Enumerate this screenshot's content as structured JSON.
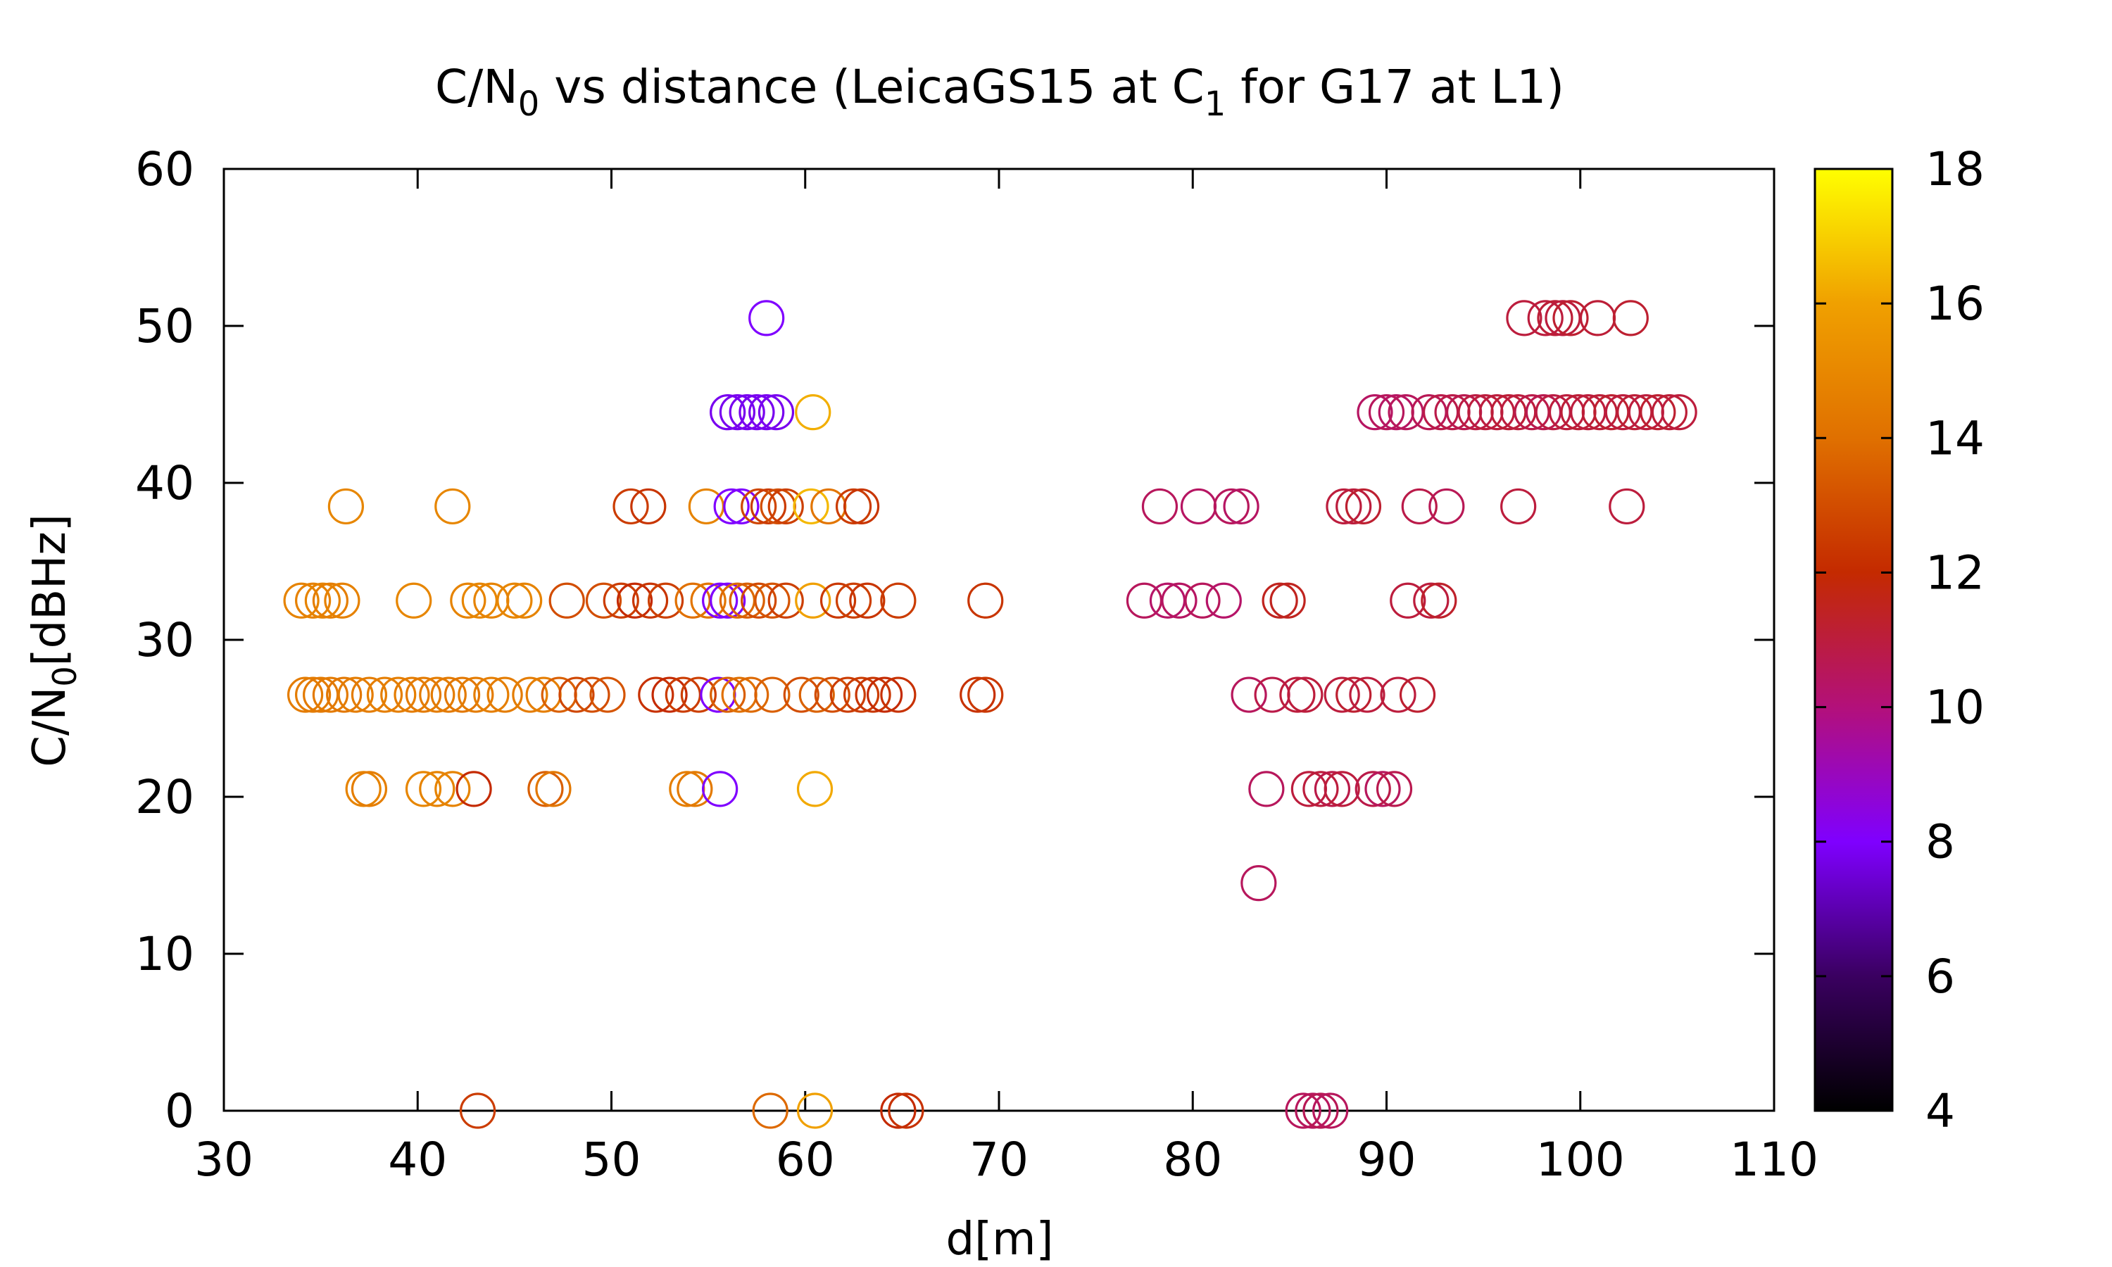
{
  "chart_data": {
    "type": "scatter",
    "title": {
      "base": "C/N",
      "sub": "0",
      "after": " vs distance (LeicaGS15 at C",
      "sub2": "1",
      "tail": " for G17 at L1)"
    },
    "xlabel": "d[m]",
    "ylabel": {
      "base": "C/N",
      "sub": "0",
      "after": "[dBHz]"
    },
    "xlim": [
      30,
      110
    ],
    "ylim": [
      0,
      60
    ],
    "x_ticks": [
      30,
      40,
      50,
      60,
      70,
      80,
      90,
      100,
      110
    ],
    "y_ticks": [
      0,
      10,
      20,
      30,
      40,
      50,
      60
    ],
    "marker": "open-circle",
    "grid": false,
    "colorbar": {
      "range": [
        4,
        18
      ],
      "ticks": [
        4,
        6,
        8,
        10,
        12,
        14,
        16,
        18
      ],
      "palette": [
        "#000000",
        "#3a0060",
        "#7f00ff",
        "#b3107a",
        "#c42a00",
        "#e07000",
        "#f0a000",
        "#ffff00"
      ]
    },
    "points": [
      [
        34.2,
        26.5,
        14.5
      ],
      [
        34.6,
        26.5,
        14.5
      ],
      [
        35.0,
        26.5,
        14.4
      ],
      [
        35.5,
        26.5,
        14.4
      ],
      [
        36.2,
        26.5,
        14.3
      ],
      [
        36.8,
        26.5,
        14.5
      ],
      [
        37.5,
        26.5,
        14.5
      ],
      [
        38.3,
        26.5,
        14.6
      ],
      [
        39.0,
        26.5,
        14.6
      ],
      [
        39.7,
        26.5,
        14.5
      ],
      [
        40.3,
        26.5,
        14.4
      ],
      [
        41.0,
        26.5,
        14.5
      ],
      [
        41.6,
        26.5,
        14.4
      ],
      [
        42.3,
        26.5,
        14.3
      ],
      [
        43.0,
        26.5,
        14.5
      ],
      [
        43.8,
        26.5,
        14.6
      ],
      [
        44.5,
        26.5,
        14.5
      ],
      [
        45.8,
        26.5,
        14.5
      ],
      [
        46.5,
        26.5,
        14.6
      ],
      [
        47.3,
        26.5,
        13.5
      ],
      [
        48.2,
        26.5,
        12.8
      ],
      [
        49.0,
        26.5,
        13.0
      ],
      [
        49.8,
        26.5,
        13.2
      ],
      [
        52.3,
        26.5,
        12.2
      ],
      [
        53.0,
        26.5,
        12.0
      ],
      [
        53.7,
        26.5,
        12.5
      ],
      [
        54.5,
        26.5,
        12.6
      ],
      [
        55.5,
        26.5,
        8.0
      ],
      [
        56.0,
        26.5,
        13.5
      ],
      [
        56.6,
        26.5,
        14.0
      ],
      [
        57.2,
        26.5,
        13.8
      ],
      [
        58.3,
        26.5,
        13.5
      ],
      [
        59.8,
        26.5,
        13.0
      ],
      [
        60.6,
        26.5,
        13.6
      ],
      [
        61.4,
        26.5,
        13.0
      ],
      [
        62.2,
        26.5,
        12.5
      ],
      [
        62.9,
        26.5,
        12.5
      ],
      [
        63.5,
        26.5,
        12.3
      ],
      [
        64.1,
        26.5,
        12.0
      ],
      [
        64.8,
        26.5,
        12.2
      ],
      [
        68.9,
        26.5,
        12.2
      ],
      [
        69.3,
        26.5,
        12.4
      ],
      [
        34.0,
        32.5,
        14.8
      ],
      [
        34.6,
        32.5,
        14.7
      ],
      [
        35.1,
        32.5,
        14.8
      ],
      [
        35.5,
        32.5,
        14.6
      ],
      [
        36.1,
        32.5,
        14.7
      ],
      [
        39.8,
        32.5,
        14.9
      ],
      [
        42.6,
        32.5,
        14.8
      ],
      [
        43.2,
        32.5,
        14.9
      ],
      [
        43.8,
        32.5,
        14.8
      ],
      [
        45.0,
        32.5,
        14.9
      ],
      [
        45.5,
        32.5,
        14.8
      ],
      [
        47.7,
        32.5,
        13.0
      ],
      [
        49.6,
        32.5,
        13.0
      ],
      [
        50.5,
        32.5,
        12.5
      ],
      [
        51.2,
        32.5,
        12.0
      ],
      [
        52.0,
        32.5,
        12.3
      ],
      [
        52.8,
        32.5,
        12.6
      ],
      [
        54.2,
        32.5,
        14.0
      ],
      [
        55.0,
        32.5,
        14.2
      ],
      [
        55.6,
        32.5,
        8.0
      ],
      [
        56.0,
        32.5,
        8.0
      ],
      [
        56.5,
        32.5,
        13.8
      ],
      [
        57.0,
        32.5,
        13.5
      ],
      [
        57.6,
        32.5,
        12.9
      ],
      [
        58.3,
        32.5,
        13.2
      ],
      [
        59.0,
        32.5,
        12.6
      ],
      [
        60.4,
        32.5,
        16.0
      ],
      [
        61.7,
        32.5,
        12.4
      ],
      [
        62.5,
        32.5,
        12.6
      ],
      [
        63.2,
        32.5,
        12.3
      ],
      [
        64.8,
        32.5,
        12.5
      ],
      [
        69.3,
        32.5,
        12.3
      ],
      [
        36.3,
        38.5,
        14.9
      ],
      [
        41.8,
        38.5,
        14.9
      ],
      [
        51.0,
        38.5,
        12.5
      ],
      [
        51.9,
        38.5,
        12.3
      ],
      [
        54.9,
        38.5,
        14.8
      ],
      [
        56.2,
        38.5,
        8.0
      ],
      [
        56.7,
        38.5,
        8.0
      ],
      [
        57.6,
        38.5,
        12.8
      ],
      [
        58.1,
        38.5,
        12.5
      ],
      [
        58.6,
        38.5,
        13.0
      ],
      [
        59.0,
        38.5,
        12.6
      ],
      [
        60.3,
        38.5,
        16.5
      ],
      [
        61.2,
        38.5,
        14.2
      ],
      [
        62.5,
        38.5,
        12.5
      ],
      [
        62.9,
        38.5,
        12.3
      ],
      [
        37.2,
        20.5,
        14.8
      ],
      [
        37.5,
        20.5,
        14.6
      ],
      [
        40.3,
        20.5,
        14.9
      ],
      [
        41.0,
        20.5,
        14.8
      ],
      [
        41.8,
        20.5,
        14.8
      ],
      [
        42.9,
        20.5,
        12.0
      ],
      [
        46.6,
        20.5,
        13.5
      ],
      [
        47.0,
        20.5,
        14.3
      ],
      [
        53.9,
        20.5,
        14.6
      ],
      [
        54.3,
        20.5,
        14.4
      ],
      [
        55.6,
        20.5,
        8.0
      ],
      [
        60.5,
        20.5,
        16.2
      ],
      [
        56.0,
        44.5,
        7.8
      ],
      [
        56.5,
        44.5,
        7.8
      ],
      [
        57.0,
        44.5,
        7.8
      ],
      [
        57.5,
        44.5,
        7.8
      ],
      [
        58.0,
        44.5,
        7.8
      ],
      [
        58.5,
        44.5,
        7.8
      ],
      [
        60.4,
        44.5,
        16.3
      ],
      [
        58.0,
        50.5,
        8.0
      ],
      [
        43.1,
        0,
        12.5
      ],
      [
        58.2,
        0,
        13.8
      ],
      [
        60.5,
        0,
        16.0
      ],
      [
        64.8,
        0,
        12.0
      ],
      [
        65.2,
        0,
        12.2
      ],
      [
        77.5,
        32.5,
        10.5
      ],
      [
        78.7,
        32.5,
        10.3
      ],
      [
        79.3,
        32.5,
        10.4
      ],
      [
        80.5,
        32.5,
        10.5
      ],
      [
        81.6,
        32.5,
        10.3
      ],
      [
        84.5,
        32.5,
        11.5
      ],
      [
        84.9,
        32.5,
        11.5
      ],
      [
        91.1,
        32.5,
        11.0
      ],
      [
        92.3,
        32.5,
        11.0
      ],
      [
        92.7,
        32.5,
        11.3
      ],
      [
        78.3,
        38.5,
        10.5
      ],
      [
        80.3,
        38.5,
        10.4
      ],
      [
        82.0,
        38.5,
        10.5
      ],
      [
        82.5,
        38.5,
        10.4
      ],
      [
        87.8,
        38.5,
        11.0
      ],
      [
        88.3,
        38.5,
        11.0
      ],
      [
        88.8,
        38.5,
        11.2
      ],
      [
        91.7,
        38.5,
        10.8
      ],
      [
        93.1,
        38.5,
        10.6
      ],
      [
        96.8,
        38.5,
        11.0
      ],
      [
        102.4,
        38.5,
        11.0
      ],
      [
        82.9,
        26.5,
        10.5
      ],
      [
        84.1,
        26.5,
        10.8
      ],
      [
        85.4,
        26.5,
        11.0
      ],
      [
        85.8,
        26.5,
        11.0
      ],
      [
        87.7,
        26.5,
        11.0
      ],
      [
        88.3,
        26.5,
        11.2
      ],
      [
        89.0,
        26.5,
        11.0
      ],
      [
        90.6,
        26.5,
        11.0
      ],
      [
        91.6,
        26.5,
        11.2
      ],
      [
        83.8,
        20.5,
        10.5
      ],
      [
        86.0,
        20.5,
        11.0
      ],
      [
        86.6,
        20.5,
        11.0
      ],
      [
        87.2,
        20.5,
        10.8
      ],
      [
        87.7,
        20.5,
        11.0
      ],
      [
        89.3,
        20.5,
        10.8
      ],
      [
        89.8,
        20.5,
        10.5
      ],
      [
        90.4,
        20.5,
        10.7
      ],
      [
        83.4,
        14.5,
        10.5
      ],
      [
        85.7,
        0,
        10.5
      ],
      [
        86.2,
        0,
        10.5
      ],
      [
        86.6,
        0,
        10.6
      ],
      [
        87.1,
        0,
        10.5
      ],
      [
        89.4,
        44.5,
        10.4
      ],
      [
        90.0,
        44.5,
        10.5
      ],
      [
        90.5,
        44.5,
        10.4
      ],
      [
        91.0,
        44.5,
        10.5
      ],
      [
        92.2,
        44.5,
        10.6
      ],
      [
        92.8,
        44.5,
        10.8
      ],
      [
        93.4,
        44.5,
        10.8
      ],
      [
        94.0,
        44.5,
        10.7
      ],
      [
        94.6,
        44.5,
        10.9
      ],
      [
        95.1,
        44.5,
        11.0
      ],
      [
        95.7,
        44.5,
        11.0
      ],
      [
        96.3,
        44.5,
        11.1
      ],
      [
        96.8,
        44.5,
        11.0
      ],
      [
        97.5,
        44.5,
        10.8
      ],
      [
        98.1,
        44.5,
        10.7
      ],
      [
        98.6,
        44.5,
        10.9
      ],
      [
        99.3,
        44.5,
        11.0
      ],
      [
        99.9,
        44.5,
        11.1
      ],
      [
        100.4,
        44.5,
        11.0
      ],
      [
        101.0,
        44.5,
        11.1
      ],
      [
        101.6,
        44.5,
        11.2
      ],
      [
        102.2,
        44.5,
        11.0
      ],
      [
        102.8,
        44.5,
        11.1
      ],
      [
        103.4,
        44.5,
        11.0
      ],
      [
        104.0,
        44.5,
        11.2
      ],
      [
        104.6,
        44.5,
        11.1
      ],
      [
        105.1,
        44.5,
        11.0
      ],
      [
        97.1,
        50.5,
        11.0
      ],
      [
        98.2,
        50.5,
        11.0
      ],
      [
        98.7,
        50.5,
        11.1
      ],
      [
        99.1,
        50.5,
        11.0
      ],
      [
        99.5,
        50.5,
        11.2
      ],
      [
        100.9,
        50.5,
        11.1
      ],
      [
        102.6,
        50.5,
        11.2
      ]
    ]
  }
}
